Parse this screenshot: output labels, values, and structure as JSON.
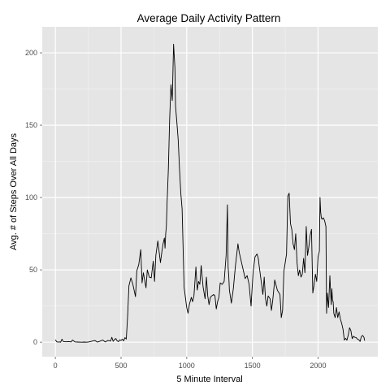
{
  "chart_data": {
    "type": "line",
    "title": "Average Daily Activity Pattern",
    "xlabel": "5 Minute Interval",
    "ylabel": "Avg. # of Steps Over All Days",
    "xlim": [
      -100,
      2455
    ],
    "ylim": [
      -10,
      218
    ],
    "x_ticks": [
      0,
      500,
      1000,
      1500,
      2000
    ],
    "y_ticks": [
      0,
      50,
      100,
      150,
      200
    ],
    "grid": true,
    "legend": "none",
    "colors": {
      "panel": "#e5e5e5",
      "grid_major": "#ffffff",
      "grid_minor": "#f2f2f2",
      "line": "#000000"
    },
    "series": [
      {
        "x": [
          0,
          10,
          20,
          30,
          40,
          50,
          60,
          80,
          100,
          120,
          130,
          150,
          170,
          200,
          220,
          240,
          260,
          300,
          320,
          340,
          360,
          380,
          400,
          420,
          430,
          440,
          450,
          460,
          470,
          480,
          490,
          500,
          510,
          520,
          530,
          540,
          550,
          560,
          575,
          590,
          610,
          620,
          635,
          650,
          660,
          670,
          690,
          700,
          715,
          730,
          745,
          755,
          765,
          780,
          800,
          810,
          820,
          830,
          835,
          840,
          845,
          850,
          860,
          870,
          880,
          890,
          900,
          910,
          915,
          925,
          935,
          945,
          955,
          965,
          980,
          1000,
          1010,
          1020,
          1035,
          1045,
          1055,
          1070,
          1080,
          1090,
          1100,
          1110,
          1125,
          1140,
          1150,
          1160,
          1170,
          1180,
          1190,
          1205,
          1215,
          1225,
          1235,
          1245,
          1255,
          1270,
          1285,
          1300,
          1310,
          1315,
          1320,
          1325,
          1340,
          1355,
          1370,
          1390,
          1400,
          1410,
          1420,
          1430,
          1445,
          1460,
          1475,
          1490,
          1505,
          1520,
          1535,
          1545,
          1550,
          1560,
          1570,
          1580,
          1590,
          1600,
          1610,
          1620,
          1635,
          1645,
          1655,
          1670,
          1690,
          1710,
          1720,
          1730,
          1740,
          1750,
          1760,
          1770,
          1780,
          1790,
          1800,
          1810,
          1820,
          1830,
          1840,
          1850,
          1860,
          1870,
          1880,
          1890,
          1900,
          1910,
          1920,
          1930,
          1940,
          1950,
          1960,
          1970,
          1980,
          1990,
          2000,
          2010,
          2015,
          2020,
          2025,
          2030,
          2040,
          2050,
          2060,
          2065,
          2070,
          2080,
          2090,
          2100,
          2105,
          2110,
          2115,
          2120,
          2130,
          2140,
          2150,
          2160,
          2170,
          2180,
          2190,
          2200,
          2210,
          2220,
          2230,
          2235,
          2240,
          2250,
          2260,
          2270,
          2280,
          2290,
          2300,
          2310,
          2320,
          2330,
          2340,
          2350,
          2355
        ],
        "y": [
          1.7,
          0.3,
          0.1,
          0.2,
          0,
          2.1,
          0.5,
          0.3,
          0.4,
          0.2,
          1.5,
          0.2,
          0.1,
          0,
          0.1,
          0,
          0.3,
          1.2,
          0.1,
          0.7,
          1.5,
          0.2,
          1.2,
          0.8,
          3.4,
          0.6,
          1.8,
          2.6,
          1.0,
          0.4,
          1.6,
          1.2,
          2.1,
          1.0,
          3.2,
          2.2,
          18,
          39,
          44.5,
          40,
          31.5,
          49.3,
          53.7,
          64,
          41,
          48,
          37.6,
          50,
          45,
          44.5,
          56,
          42,
          60,
          70,
          55,
          62,
          68,
          72,
          65,
          75,
          80,
          95,
          119,
          154,
          178,
          167,
          206,
          190,
          163,
          152,
          140,
          120,
          103,
          92,
          38,
          24,
          20,
          26,
          31,
          28,
          32,
          52,
          36,
          42,
          40,
          53,
          38,
          30,
          45,
          32,
          26,
          31,
          32,
          33,
          32,
          23,
          28,
          31,
          41,
          40,
          42,
          60,
          95,
          52,
          46,
          36,
          27,
          37,
          52,
          68,
          62,
          58,
          54,
          50,
          44,
          46,
          40,
          25,
          48,
          59,
          61,
          58,
          54,
          47,
          40,
          33,
          45,
          30,
          25,
          32,
          30,
          22,
          29,
          43,
          36,
          33,
          17,
          22,
          49,
          55,
          61,
          101,
          103,
          82,
          78,
          68,
          64,
          75,
          55,
          46,
          50,
          45,
          47,
          58,
          48,
          80,
          60,
          66,
          74,
          78,
          34,
          40,
          47,
          42,
          59,
          63,
          100,
          90,
          86,
          85,
          86,
          84,
          80,
          20,
          34,
          24,
          46,
          26,
          37,
          29,
          28,
          20,
          17,
          24,
          17,
          21,
          16,
          13,
          9,
          1.5,
          2.7,
          1.4,
          5,
          7.5,
          10,
          8,
          2.5,
          4.1,
          3.4,
          3.2,
          2.1,
          1.8,
          0.5,
          4,
          4.7,
          3.3,
          1.1
        ]
      }
    ]
  }
}
